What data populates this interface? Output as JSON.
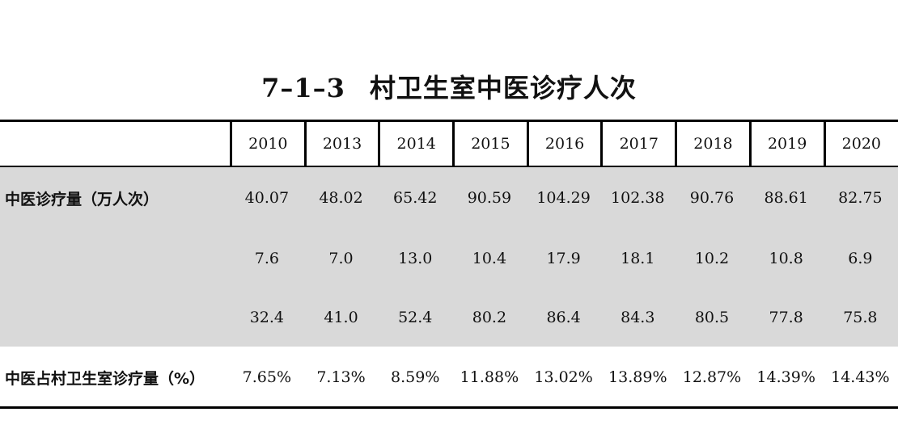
{
  "table": {
    "title_code": "7–1–3",
    "title_text": "村卫生室中医诊疗人次",
    "years": [
      "2010",
      "2013",
      "2014",
      "2015",
      "2016",
      "2017",
      "2018",
      "2019",
      "2020"
    ],
    "rows": [
      {
        "label": "中医诊疗量（万人次）",
        "values": [
          "40.07",
          "48.02",
          "65.42",
          "90.59",
          "104.29",
          "102.38",
          "90.76",
          "88.61",
          "82.75"
        ]
      },
      {
        "label": "",
        "values": [
          "7.6",
          "7.0",
          "13.0",
          "10.4",
          "17.9",
          "18.1",
          "10.2",
          "10.8",
          "6.9"
        ]
      },
      {
        "label": "",
        "values": [
          "32.4",
          "41.0",
          "52.4",
          "80.2",
          "86.4",
          "84.3",
          "80.5",
          "77.8",
          "75.8"
        ]
      },
      {
        "label": "中医占村卫生室诊疗量（%）",
        "values": [
          "7.65%",
          "7.13%",
          "8.59%",
          "11.88%",
          "13.02%",
          "13.89%",
          "12.87%",
          "14.39%",
          "14.43%"
        ]
      }
    ]
  }
}
